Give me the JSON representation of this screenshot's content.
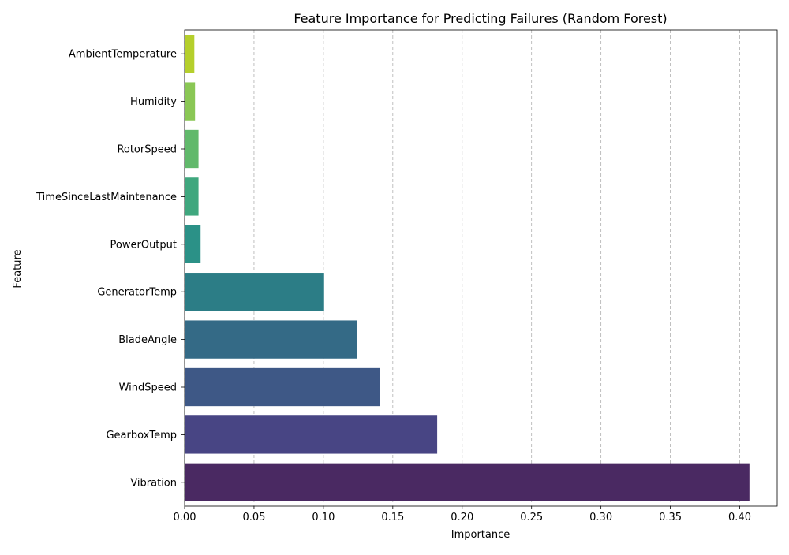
{
  "chart_data": {
    "type": "bar",
    "orientation": "horizontal",
    "title": "Feature Importance for Predicting Failures (Random Forest)",
    "xlabel": "Importance",
    "ylabel": "Feature",
    "xlim": [
      0,
      0.427
    ],
    "x_ticks": [
      0.0,
      0.05,
      0.1,
      0.15,
      0.2,
      0.25,
      0.3,
      0.35,
      0.4
    ],
    "x_tick_labels": [
      "0.00",
      "0.05",
      "0.10",
      "0.15",
      "0.20",
      "0.25",
      "0.30",
      "0.35",
      "0.40"
    ],
    "grid": "x-axis dashed",
    "categories": [
      "AmbientTemperature",
      "Humidity",
      "RotorSpeed",
      "TimeSinceLastMaintenance",
      "PowerOutput",
      "GeneratorTemp",
      "BladeAngle",
      "WindSpeed",
      "GearboxTemp",
      "Vibration"
    ],
    "values": [
      0.007,
      0.0075,
      0.01,
      0.01,
      0.0115,
      0.1005,
      0.1245,
      0.1405,
      0.182,
      0.407
    ],
    "colors": [
      "#b5cf2c",
      "#8ac755",
      "#61b96b",
      "#3fa77e",
      "#2b9187",
      "#2c7d86",
      "#346a86",
      "#3e5886",
      "#484584",
      "#4a2962"
    ]
  }
}
